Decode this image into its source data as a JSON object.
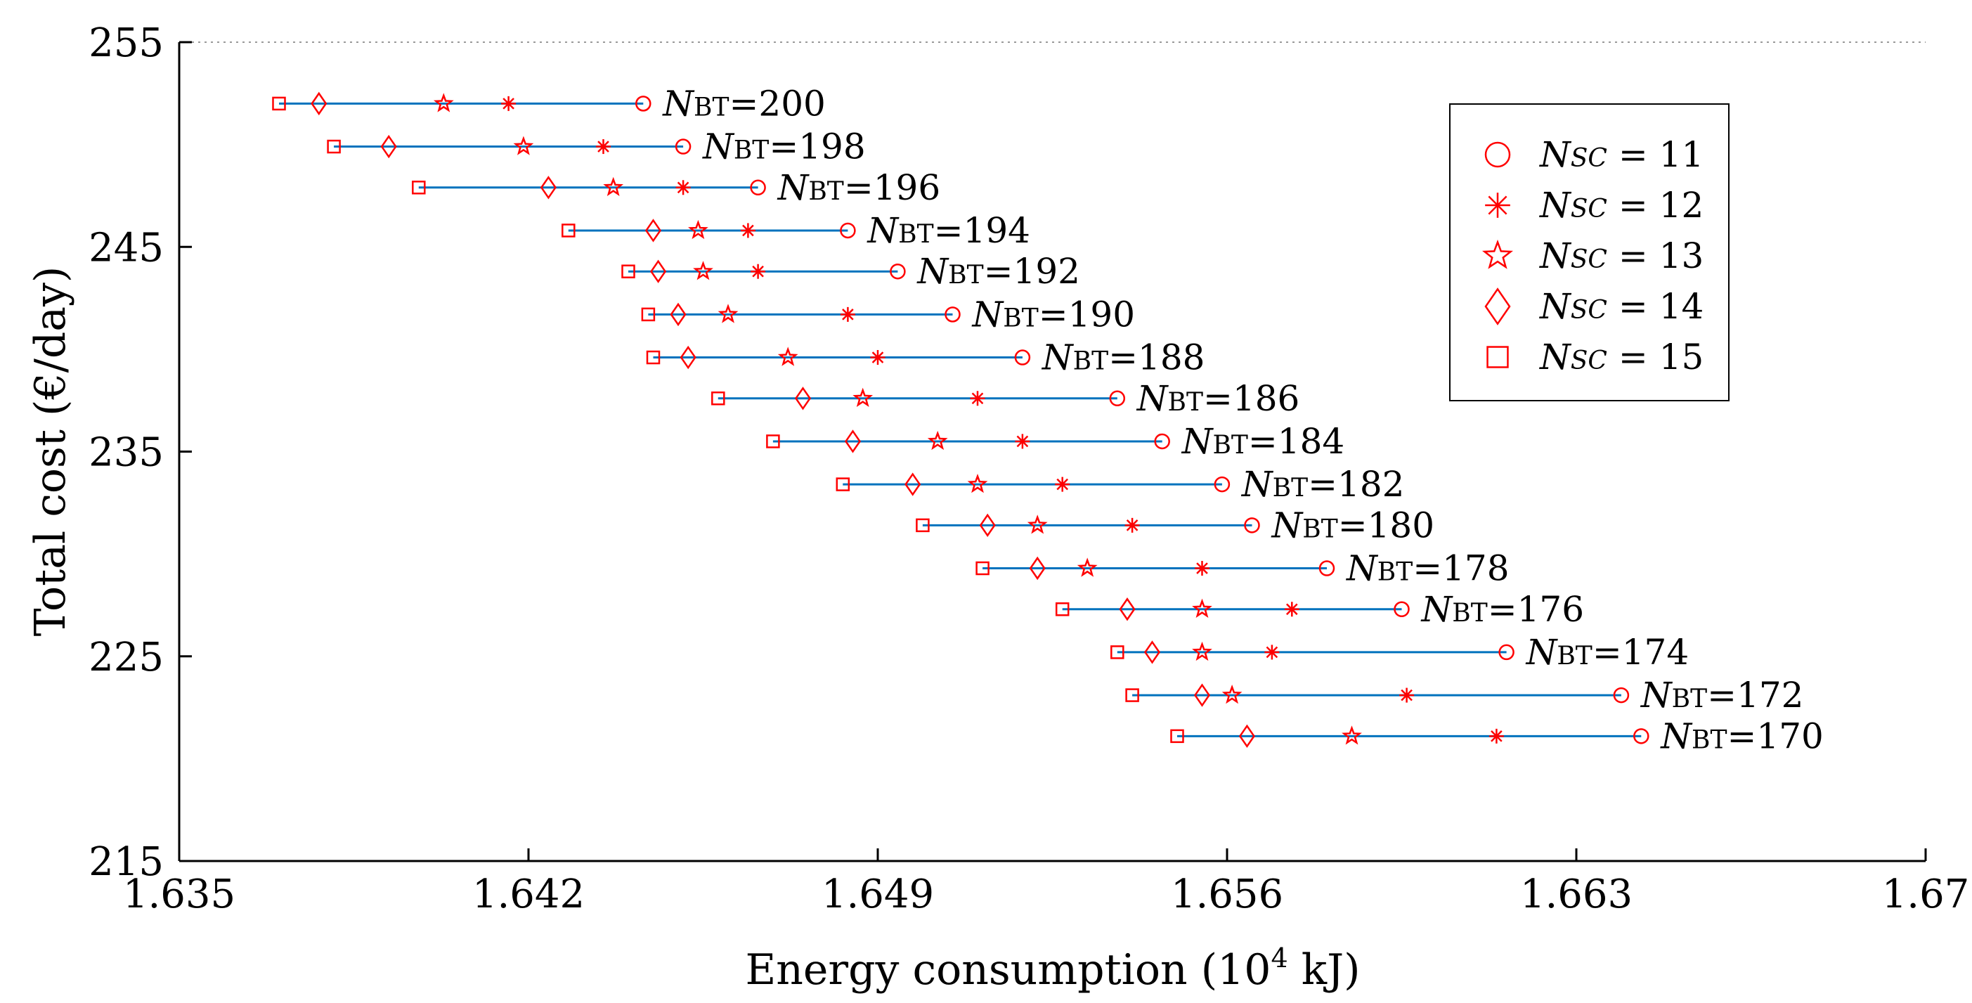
{
  "chart_data": {
    "type": "scatter",
    "title": "",
    "xlabel": "Energy consumption (10",
    "xlabel_sup": "4",
    "xlabel_unit": " kJ)",
    "ylabel": "Total cost (€/day)",
    "xlim": [
      1.635,
      1.67
    ],
    "ylim": [
      215,
      255
    ],
    "xticks": [
      "1.635",
      "1.642",
      "1.649",
      "1.656",
      "1.663",
      "1.67"
    ],
    "yticks": [
      "215",
      "225",
      "235",
      "245",
      "255"
    ],
    "grid": "dotted top border",
    "line_color": "#0072BD",
    "marker_color": "#FF0000",
    "legend_position": "top-right",
    "legend": [
      {
        "symbol": "circle",
        "var": "N",
        "sub": "SC",
        "text": " = 11"
      },
      {
        "symbol": "asterisk",
        "var": "N",
        "sub": "SC",
        "text": " = 12"
      },
      {
        "symbol": "star",
        "var": "N",
        "sub": "SC",
        "text": " = 13"
      },
      {
        "symbol": "diamond",
        "var": "N",
        "sub": "SC",
        "text": " = 14"
      },
      {
        "symbol": "square",
        "var": "N",
        "sub": "SC",
        "text": " = 15"
      }
    ],
    "series": [
      {
        "label_var": "N",
        "label_sub": "BT",
        "label_val": "=200",
        "y": 252.0,
        "x": {
          "11": 1.6443,
          "12": 1.6416,
          "13": 1.6403,
          "14": 1.6378,
          "15": 1.637
        }
      },
      {
        "label_var": "N",
        "label_sub": "BT",
        "label_val": "=198",
        "y": 249.9,
        "x": {
          "11": 1.6451,
          "12": 1.6435,
          "13": 1.6419,
          "14": 1.6392,
          "15": 1.6381
        }
      },
      {
        "label_var": "N",
        "label_sub": "BT",
        "label_val": "=196",
        "y": 247.9,
        "x": {
          "11": 1.6466,
          "12": 1.6451,
          "13": 1.6437,
          "14": 1.6424,
          "15": 1.6398
        }
      },
      {
        "label_var": "N",
        "label_sub": "BT",
        "label_val": "=194",
        "y": 245.8,
        "x": {
          "11": 1.6484,
          "12": 1.6464,
          "13": 1.6454,
          "14": 1.6445,
          "15": 1.6428
        }
      },
      {
        "label_var": "N",
        "label_sub": "BT",
        "label_val": "=192",
        "y": 243.8,
        "x": {
          "11": 1.6494,
          "12": 1.6466,
          "13": 1.6455,
          "14": 1.6446,
          "15": 1.644
        }
      },
      {
        "label_var": "N",
        "label_sub": "BT",
        "label_val": "=190",
        "y": 241.7,
        "x": {
          "11": 1.6505,
          "12": 1.6484,
          "13": 1.646,
          "14": 1.645,
          "15": 1.6444
        }
      },
      {
        "label_var": "N",
        "label_sub": "BT",
        "label_val": "=188",
        "y": 239.6,
        "x": {
          "11": 1.6519,
          "12": 1.649,
          "13": 1.6472,
          "14": 1.6452,
          "15": 1.6445
        }
      },
      {
        "label_var": "N",
        "label_sub": "BT",
        "label_val": "=186",
        "y": 237.6,
        "x": {
          "11": 1.6538,
          "12": 1.651,
          "13": 1.6487,
          "14": 1.6475,
          "15": 1.6458
        }
      },
      {
        "label_var": "N",
        "label_sub": "BT",
        "label_val": "=184",
        "y": 235.5,
        "x": {
          "11": 1.6547,
          "12": 1.6519,
          "13": 1.6502,
          "14": 1.6485,
          "15": 1.6469
        }
      },
      {
        "label_var": "N",
        "label_sub": "BT",
        "label_val": "=182",
        "y": 233.4,
        "x": {
          "11": 1.6559,
          "12": 1.6527,
          "13": 1.651,
          "14": 1.6497,
          "15": 1.6483
        }
      },
      {
        "label_var": "N",
        "label_sub": "BT",
        "label_val": "=180",
        "y": 231.4,
        "x": {
          "11": 1.6565,
          "12": 1.6541,
          "13": 1.6522,
          "14": 1.6512,
          "15": 1.6499
        }
      },
      {
        "label_var": "N",
        "label_sub": "BT",
        "label_val": "=178",
        "y": 229.3,
        "x": {
          "11": 1.658,
          "12": 1.6555,
          "13": 1.6532,
          "14": 1.6522,
          "15": 1.6511
        }
      },
      {
        "label_var": "N",
        "label_sub": "BT",
        "label_val": "=176",
        "y": 227.3,
        "x": {
          "11": 1.6595,
          "12": 1.6573,
          "13": 1.6555,
          "14": 1.654,
          "15": 1.6527
        }
      },
      {
        "label_var": "N",
        "label_sub": "BT",
        "label_val": "=174",
        "y": 225.2,
        "x": {
          "11": 1.6616,
          "12": 1.6569,
          "13": 1.6555,
          "14": 1.6545,
          "15": 1.6538
        }
      },
      {
        "label_var": "N",
        "label_sub": "BT",
        "label_val": "=172",
        "y": 223.1,
        "x": {
          "11": 1.6639,
          "12": 1.6596,
          "13": 1.6561,
          "14": 1.6555,
          "15": 1.6541
        }
      },
      {
        "label_var": "N",
        "label_sub": "BT",
        "label_val": "=170",
        "y": 221.1,
        "x": {
          "11": 1.6643,
          "12": 1.6614,
          "13": 1.6585,
          "14": 1.6564,
          "15": 1.655
        }
      }
    ]
  }
}
